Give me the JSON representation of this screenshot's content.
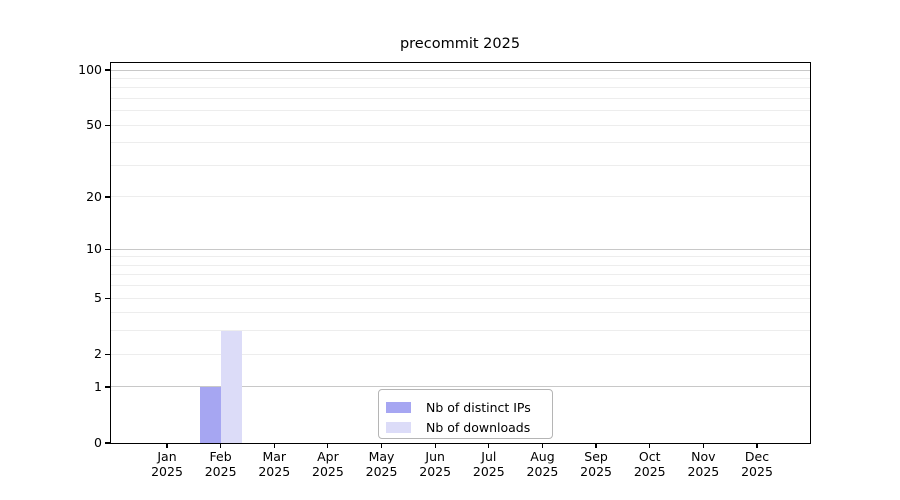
{
  "window": {
    "background": "#ffffff"
  },
  "chart_data": {
    "type": "bar",
    "title": "precommit 2025",
    "categories": [
      "Jan 2025",
      "Feb 2025",
      "Mar 2025",
      "Apr 2025",
      "May 2025",
      "Jun 2025",
      "Jul 2025",
      "Aug 2025",
      "Sep 2025",
      "Oct 2025",
      "Nov 2025",
      "Dec 2025"
    ],
    "series": [
      {
        "name": "Nb of distinct IPs",
        "color": "#a6a6f2",
        "values": [
          0,
          1,
          0,
          0,
          0,
          0,
          0,
          0,
          0,
          0,
          0,
          0
        ]
      },
      {
        "name": "Nb of downloads",
        "color": "#dcdcf8",
        "values": [
          0,
          3,
          0,
          0,
          0,
          0,
          0,
          0,
          0,
          0,
          0,
          0
        ]
      }
    ],
    "xlabel": "",
    "ylabel": "",
    "yscale": "log1p",
    "ylim": [
      0,
      112
    ],
    "ytick_values": [
      0,
      1,
      2,
      5,
      10,
      20,
      50,
      100
    ],
    "ytick_labels": [
      "0",
      "1",
      "2",
      "5",
      "10",
      "20",
      "50",
      "100"
    ],
    "major_grid_values": [
      1,
      10,
      100
    ],
    "minor_grid_values": [
      2,
      3,
      4,
      5,
      6,
      7,
      8,
      9,
      20,
      30,
      40,
      50,
      60,
      70,
      80,
      90
    ],
    "grid": true,
    "legend_position": "lower center"
  },
  "style": {
    "major_grid_color": "#c8c8c8",
    "minor_grid_color": "#ededed",
    "spine_color": "#000000",
    "text_color": "#000000"
  }
}
